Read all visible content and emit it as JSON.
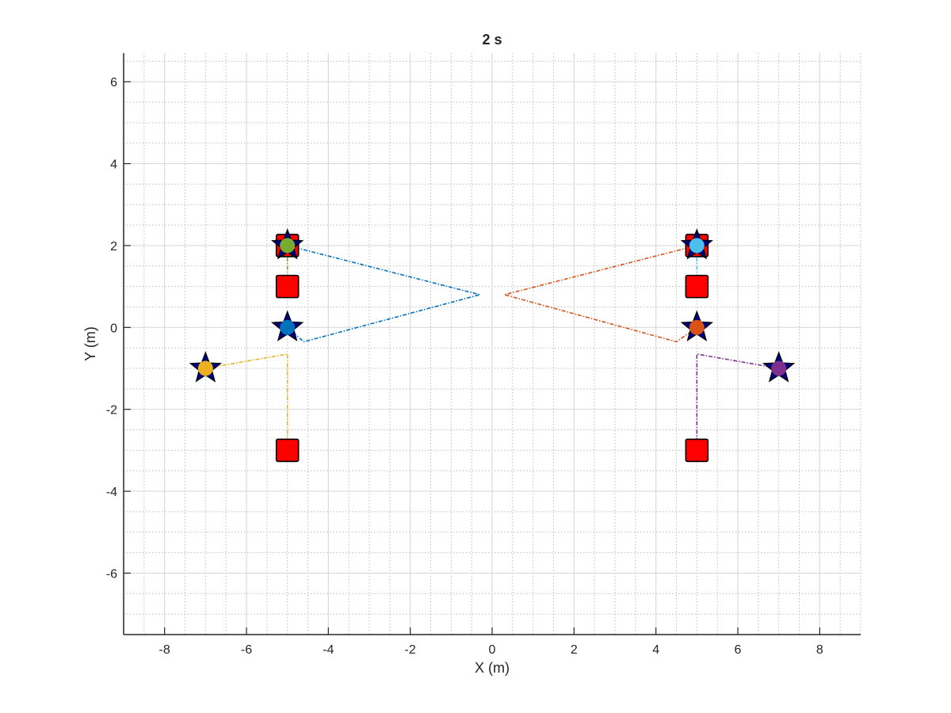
{
  "chart_data": {
    "type": "scatter",
    "title": "2 s",
    "xlabel": "X (m)",
    "ylabel": "Y (m)",
    "xlim": [
      -9,
      9
    ],
    "ylim": [
      -7.5,
      6.7
    ],
    "xticks": [
      -8,
      -6,
      -4,
      -2,
      0,
      2,
      4,
      6,
      8
    ],
    "yticks": [
      -6,
      -4,
      -2,
      0,
      2,
      4,
      6
    ],
    "minor_tick_step": 0.5,
    "grid": true,
    "minor_grid": true,
    "trajectories": [
      {
        "color": "#0072BD",
        "points": [
          [
            -5,
            2
          ],
          [
            -0.3,
            0.8
          ],
          [
            -4.6,
            -0.35
          ],
          [
            -5,
            0
          ]
        ]
      },
      {
        "color": "#D95319",
        "points": [
          [
            5,
            2
          ],
          [
            0.3,
            0.8
          ],
          [
            4.5,
            -0.35
          ],
          [
            5,
            0
          ]
        ]
      },
      {
        "color": "#EDB120",
        "points": [
          [
            -5,
            -3
          ],
          [
            -5,
            -0.65
          ],
          [
            -7,
            -1
          ]
        ]
      },
      {
        "color": "#7E2F8E",
        "points": [
          [
            5,
            -3
          ],
          [
            5,
            -0.65
          ],
          [
            7,
            -1
          ]
        ]
      },
      {
        "color": "#77AC30",
        "points": [
          [
            -5,
            1
          ],
          [
            -5,
            2
          ]
        ]
      },
      {
        "color": "#4DBEEE",
        "points": [
          [
            5,
            1
          ],
          [
            5,
            2
          ]
        ]
      }
    ],
    "start_markers": {
      "shape": "square",
      "color": "#FF0000",
      "points": [
        [
          -5,
          2
        ],
        [
          -5,
          1
        ],
        [
          -5,
          -3
        ],
        [
          5,
          2
        ],
        [
          5,
          1
        ],
        [
          5,
          -3
        ]
      ]
    },
    "goal_markers": {
      "shape": "star",
      "color": "#000080",
      "points": [
        [
          -5,
          2
        ],
        [
          -5,
          0
        ],
        [
          -7,
          -1
        ],
        [
          5,
          2
        ],
        [
          5,
          0
        ],
        [
          7,
          -1
        ]
      ]
    },
    "agents": [
      {
        "x": -5,
        "y": 0,
        "color": "#0072BD"
      },
      {
        "x": 5,
        "y": 0,
        "color": "#D95319"
      },
      {
        "x": -7,
        "y": -1,
        "color": "#EDB120"
      },
      {
        "x": 7,
        "y": -1,
        "color": "#7E2F8E"
      },
      {
        "x": -5,
        "y": 2,
        "color": "#77AC30"
      },
      {
        "x": 5,
        "y": 2,
        "color": "#4DBEEE"
      }
    ]
  }
}
